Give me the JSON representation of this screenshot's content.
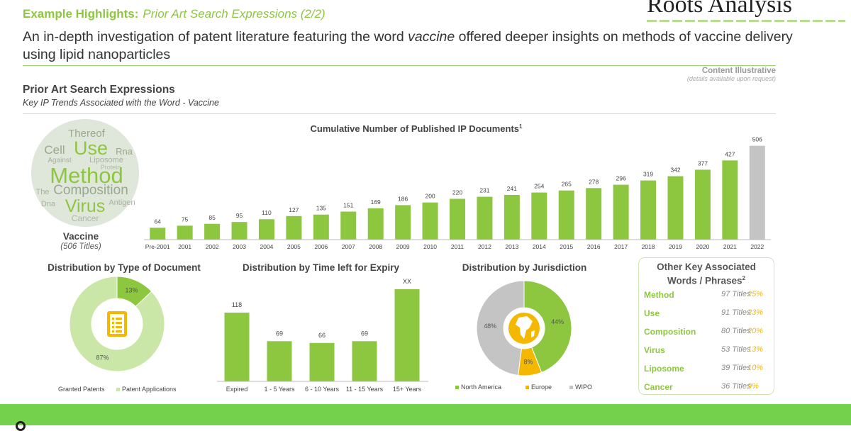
{
  "header": {
    "highlight": "Example Highlights:",
    "highlight_sub": "Prior Art Search Expressions (2/2)",
    "brand": "Roots Analysis"
  },
  "intro": {
    "before": "An in-depth investigation of patent literature featuring the word ",
    "keyword": "vaccine",
    "after": " offered deeper insights on methods of vaccine delivery using lipid nanoparticles"
  },
  "content_note": {
    "title": "Content Illustrative",
    "subtitle": "(details available upon request)"
  },
  "section": {
    "title": "Prior Art Search Expressions",
    "subtitle": "Key IP Trends Associated with  the Word - Vaccine"
  },
  "word_cloud": {
    "words": [
      "Thereof",
      "Use",
      "Cell",
      "Rna",
      "Against",
      "Liposome",
      "Protein",
      "Method",
      "The",
      "Composition",
      "Virus",
      "Antigen",
      "Dna",
      "Cancer"
    ],
    "label": "Vaccine",
    "count": "(506 Titles)"
  },
  "colors": {
    "green": "#8dc63f",
    "light_green": "#cbe7a7",
    "grey": "#c4c4c4",
    "yellow": "#f5b800"
  },
  "chart_data": [
    {
      "type": "bar",
      "title": "Cumulative Number of Published IP Documents",
      "title_sup": "1",
      "categories": [
        "Pre-2001",
        "2001",
        "2002",
        "2003",
        "2004",
        "2005",
        "2006",
        "2007",
        "2008",
        "2009",
        "2010",
        "2011",
        "2012",
        "2013",
        "2014",
        "2015",
        "2016",
        "2017",
        "2018",
        "2019",
        "2020",
        "2021",
        "2022"
      ],
      "values": [
        64,
        75,
        85,
        95,
        110,
        127,
        135,
        151,
        169,
        186,
        200,
        220,
        231,
        241,
        254,
        265,
        278,
        296,
        319,
        342,
        377,
        427,
        506
      ],
      "value_labels": [
        "64",
        "75",
        "85",
        "95",
        "110",
        "127",
        "135",
        "151",
        "169",
        "186",
        "200",
        "220",
        "231",
        "241",
        "254",
        "265",
        "278",
        "296",
        "319",
        "342",
        "377",
        "427",
        "506"
      ],
      "highlight_last": true,
      "ylim": [
        0,
        520
      ]
    },
    {
      "type": "pie",
      "title": "Distribution by Type of Document",
      "categories": [
        "Granted Patents",
        "Patent Applications"
      ],
      "values": [
        13,
        87
      ],
      "labels": [
        "13%",
        "87%"
      ],
      "icon": "document-list-icon",
      "legend": "bottom"
    },
    {
      "type": "bar",
      "title": "Distribution by Time left for Expiry",
      "categories": [
        "Expired",
        "1 - 5 Years",
        "6 - 10 Years",
        "11 - 15 Years",
        "15+ Years"
      ],
      "values": [
        118,
        69,
        66,
        69,
        null
      ],
      "value_labels": [
        "118",
        "69",
        "66",
        "69",
        "XX"
      ],
      "ylim": [
        0,
        185
      ]
    },
    {
      "type": "pie",
      "title": "Distribution by Jurisdiction",
      "categories": [
        "North America",
        "Europe",
        "WIPO"
      ],
      "values": [
        44,
        8,
        48
      ],
      "labels": [
        "44%",
        "8%",
        "48%"
      ],
      "icon": "globe-icon",
      "legend": "bottom"
    }
  ],
  "key_words": {
    "title_line1": "Other Key Associated",
    "title_line2": "Words / Phrases",
    "title_sup": "2",
    "items": [
      {
        "word": "Method",
        "count": "97 Titles",
        "pct": "25%"
      },
      {
        "word": "Use",
        "count": "91 Titles",
        "pct": "23%"
      },
      {
        "word": "Composition",
        "count": "80 Titles",
        "pct": "20%"
      },
      {
        "word": "Virus",
        "count": "53 Titles",
        "pct": "13%"
      },
      {
        "word": "Liposome",
        "count": "39 Titles",
        "pct": "10%"
      },
      {
        "word": "Cancer",
        "count": "36 Titles",
        "pct": "9%"
      }
    ]
  }
}
